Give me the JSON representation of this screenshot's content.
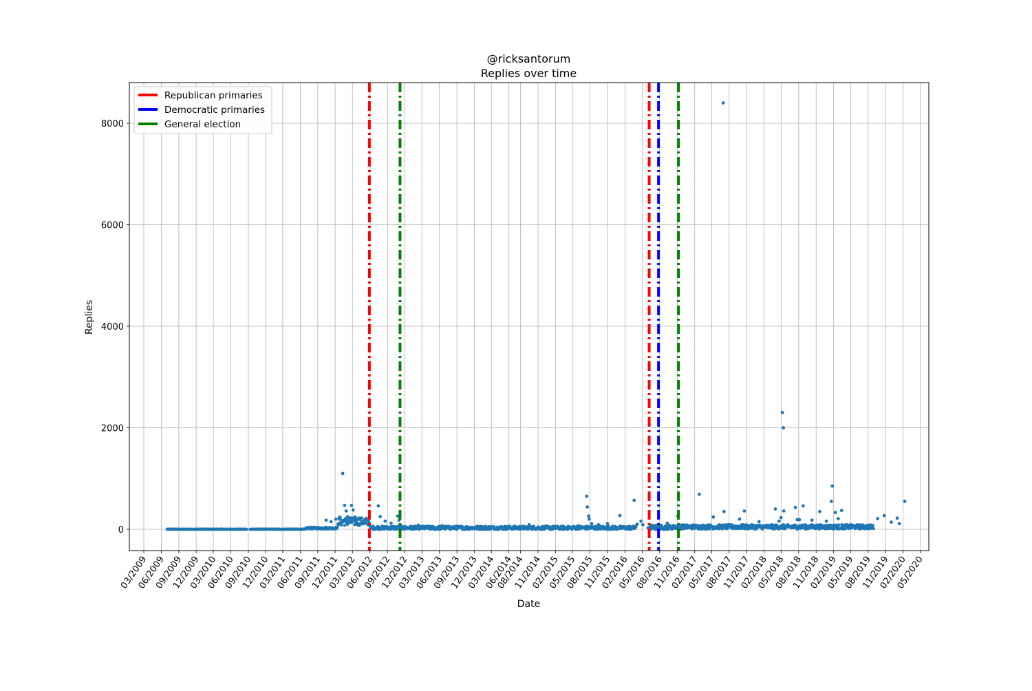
{
  "chart_data": {
    "type": "scatter",
    "title": "@ricksantorum",
    "subtitle": "Replies over time",
    "xlabel": "Date",
    "ylabel": "Replies",
    "ylim": [
      -420,
      8800
    ],
    "xlim": [
      "2008-12-15",
      "2020-06-15"
    ],
    "grid": true,
    "legend_position": "top-left",
    "x_ticks": [
      "03/2009",
      "06/2009",
      "09/2009",
      "12/2009",
      "03/2010",
      "06/2010",
      "09/2010",
      "12/2010",
      "03/2011",
      "06/2011",
      "09/2011",
      "12/2011",
      "03/2012",
      "06/2012",
      "09/2012",
      "12/2012",
      "03/2013",
      "06/2013",
      "09/2013",
      "12/2013",
      "03/2014",
      "06/2014",
      "08/2014",
      "11/2014",
      "02/2015",
      "05/2015",
      "08/2015",
      "11/2015",
      "02/2016",
      "05/2016",
      "08/2016",
      "11/2016",
      "02/2017",
      "05/2017",
      "08/2017",
      "11/2017",
      "02/2018",
      "05/2018",
      "08/2018",
      "11/2018",
      "02/2019",
      "05/2019",
      "08/2019",
      "11/2019",
      "02/2020",
      "05/2020"
    ],
    "y_ticks": [
      0,
      2000,
      4000,
      6000,
      8000
    ],
    "reference_lines": [
      {
        "name": "Republican primaries",
        "color": "#ff0000",
        "dates": [
          "2012-05-29",
          "2016-06-07"
        ]
      },
      {
        "name": "Democratic primaries",
        "color": "#0000ff",
        "dates": [
          "2016-07-26"
        ]
      },
      {
        "name": "General election",
        "color": "#008000",
        "dates": [
          "2012-11-06",
          "2016-11-08"
        ]
      }
    ],
    "series": [
      {
        "color": "#1f77b4",
        "points": [
          [
            "2011-10-15",
            180
          ],
          [
            "2011-11-10",
            150
          ],
          [
            "2011-12-05",
            200
          ],
          [
            "2011-12-25",
            240
          ],
          [
            "2012-01-10",
            1100
          ],
          [
            "2012-01-20",
            470
          ],
          [
            "2012-01-28",
            360
          ],
          [
            "2012-02-05",
            250
          ],
          [
            "2012-02-15",
            210
          ],
          [
            "2012-02-25",
            470
          ],
          [
            "2012-03-05",
            380
          ],
          [
            "2012-03-15",
            240
          ],
          [
            "2012-03-25",
            180
          ],
          [
            "2012-04-05",
            220
          ],
          [
            "2012-04-20",
            150
          ],
          [
            "2012-05-10",
            120
          ],
          [
            "2012-07-15",
            460
          ],
          [
            "2012-07-25",
            250
          ],
          [
            "2012-08-20",
            160
          ],
          [
            "2012-09-20",
            120
          ],
          [
            "2012-10-25",
            260
          ],
          [
            "2012-11-01",
            180
          ],
          [
            "2013-02-10",
            80
          ],
          [
            "2013-06-15",
            70
          ],
          [
            "2014-09-15",
            90
          ],
          [
            "2015-06-01",
            70
          ],
          [
            "2015-07-15",
            650
          ],
          [
            "2015-07-18",
            440
          ],
          [
            "2015-07-25",
            260
          ],
          [
            "2015-07-28",
            200
          ],
          [
            "2015-08-10",
            110
          ],
          [
            "2015-09-15",
            90
          ],
          [
            "2015-11-01",
            110
          ],
          [
            "2016-01-05",
            270
          ],
          [
            "2016-03-20",
            570
          ],
          [
            "2016-04-05",
            100
          ],
          [
            "2016-04-25",
            160
          ],
          [
            "2016-05-05",
            90
          ],
          [
            "2016-09-10",
            120
          ],
          [
            "2016-11-05",
            260
          ],
          [
            "2017-02-25",
            690
          ],
          [
            "2017-05-10",
            240
          ],
          [
            "2017-07-01",
            8400
          ],
          [
            "2017-07-05",
            350
          ],
          [
            "2017-10-20",
            360
          ],
          [
            "2017-09-25",
            200
          ],
          [
            "2018-01-05",
            150
          ],
          [
            "2018-04-01",
            400
          ],
          [
            "2018-05-01",
            230
          ],
          [
            "2018-05-08",
            2300
          ],
          [
            "2018-05-13",
            2000
          ],
          [
            "2018-05-15",
            360
          ],
          [
            "2018-04-20",
            160
          ],
          [
            "2018-07-15",
            430
          ],
          [
            "2018-07-25",
            190
          ],
          [
            "2018-08-25",
            460
          ],
          [
            "2018-08-05",
            190
          ],
          [
            "2018-10-10",
            180
          ],
          [
            "2018-11-20",
            350
          ],
          [
            "2018-12-25",
            160
          ],
          [
            "2019-01-25",
            850
          ],
          [
            "2019-01-20",
            550
          ],
          [
            "2019-02-25",
            210
          ],
          [
            "2019-03-15",
            370
          ],
          [
            "2019-02-10",
            330
          ],
          [
            "2019-09-20",
            210
          ],
          [
            "2019-10-25",
            270
          ],
          [
            "2019-12-01",
            140
          ],
          [
            "2020-01-01",
            220
          ],
          [
            "2020-01-12",
            110
          ],
          [
            "2020-02-10",
            550
          ]
        ],
        "baseline_segments": [
          {
            "start": "2009-07-01",
            "end": "2010-08-25",
            "level": 0,
            "spread": 6
          },
          {
            "start": "2010-09-10",
            "end": "2011-07-01",
            "level": 0,
            "spread": 8
          },
          {
            "start": "2011-07-01",
            "end": "2011-12-15",
            "level": 15,
            "spread": 40
          },
          {
            "start": "2011-12-15",
            "end": "2012-06-01",
            "level": 120,
            "spread": 160
          },
          {
            "start": "2012-06-01",
            "end": "2016-04-01",
            "level": 15,
            "spread": 70
          },
          {
            "start": "2016-06-01",
            "end": "2016-10-15",
            "level": 20,
            "spread": 90
          },
          {
            "start": "2016-10-15",
            "end": "2019-09-01",
            "level": 30,
            "spread": 90
          }
        ]
      }
    ]
  }
}
